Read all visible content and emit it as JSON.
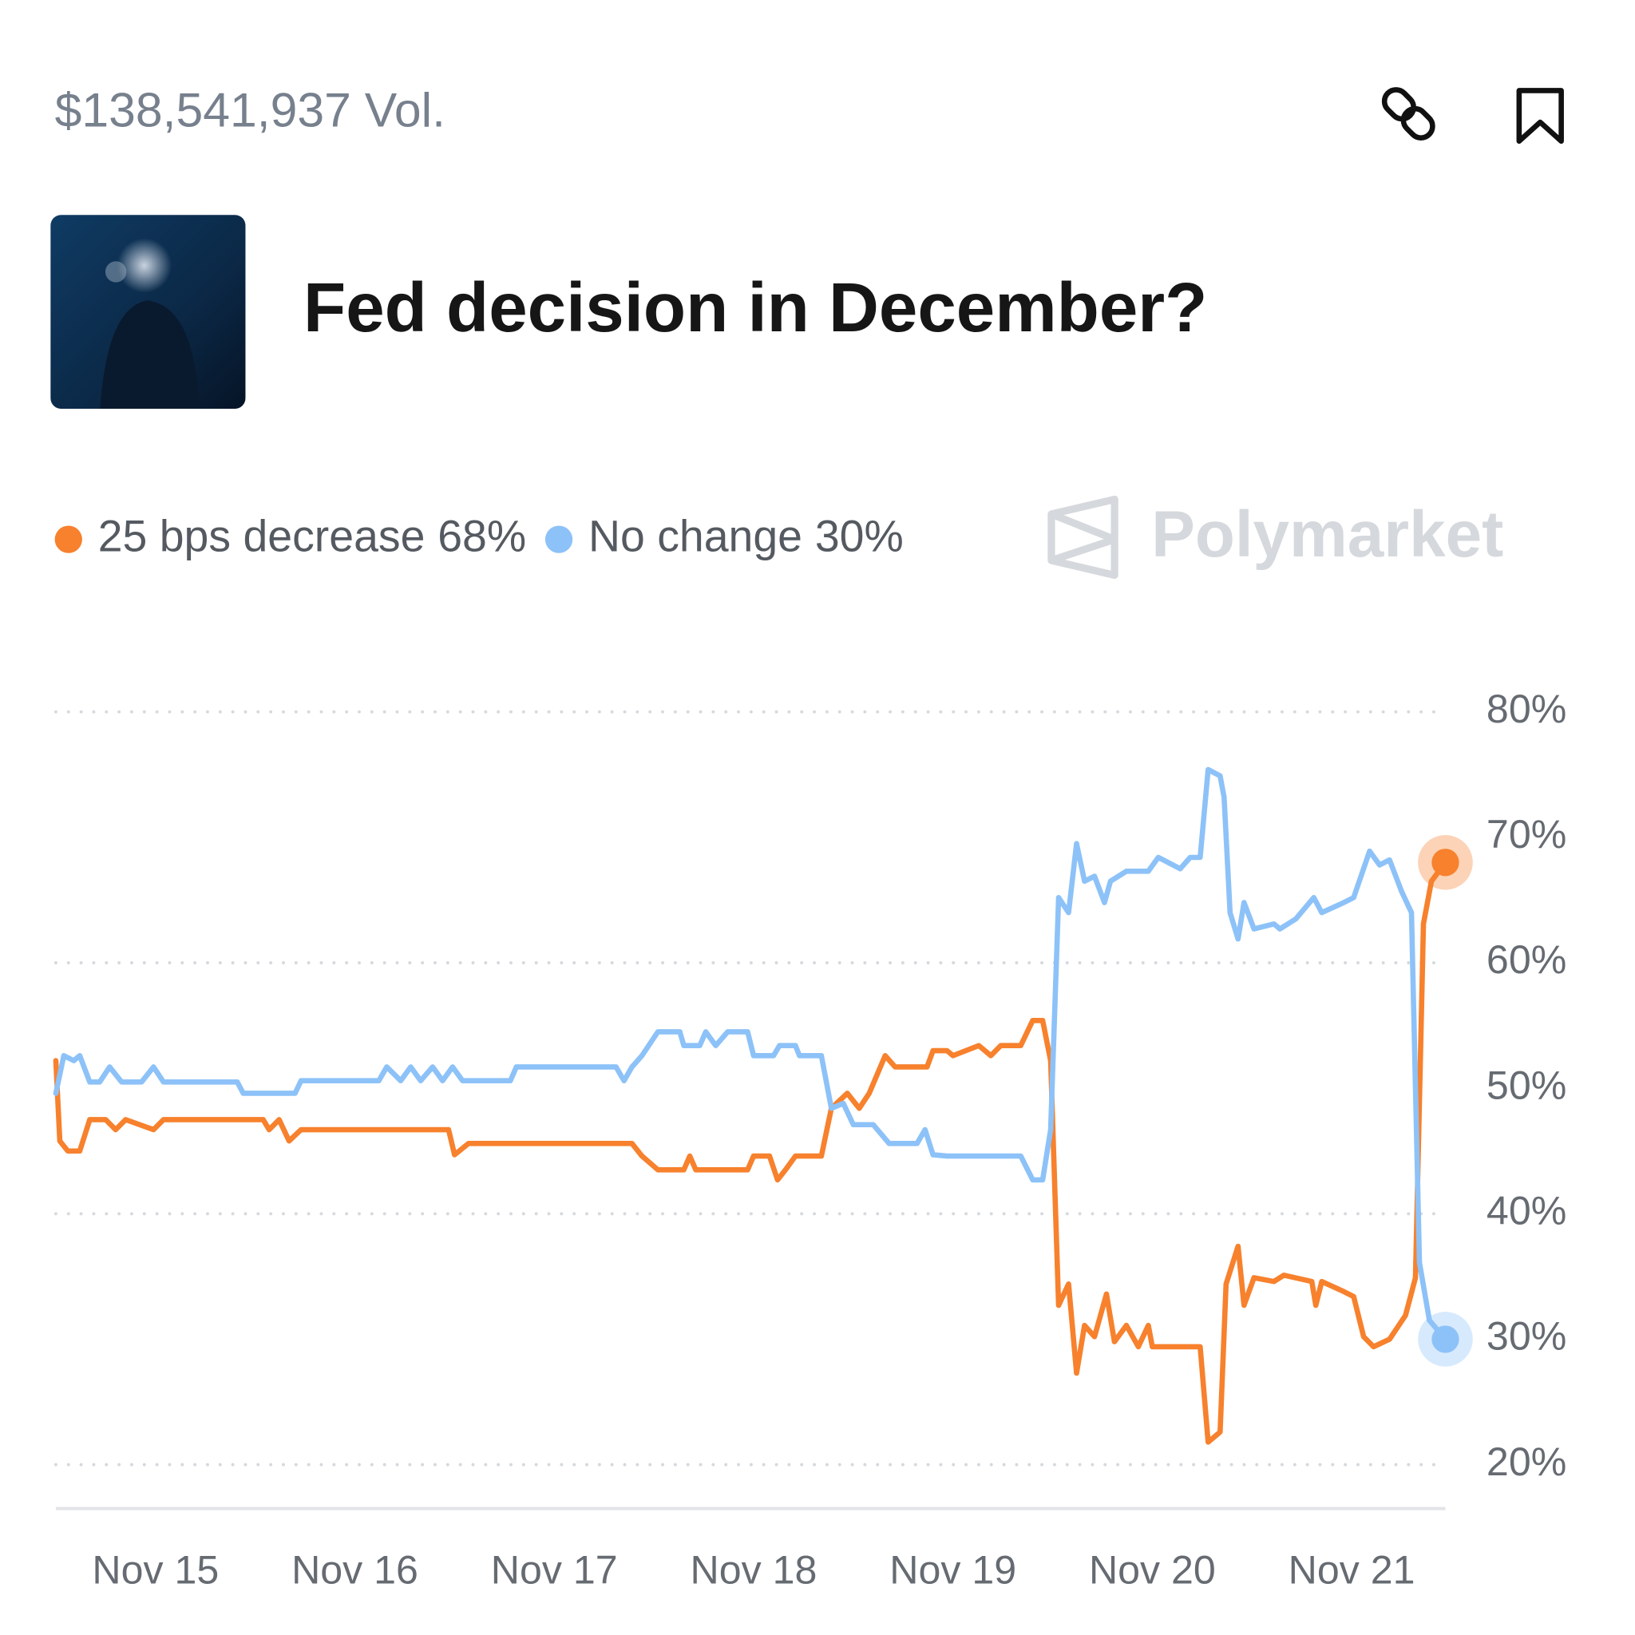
{
  "header": {
    "volume": "$138,541,937 Vol.",
    "title": "Fed decision in December?"
  },
  "chart_data": {
    "type": "line",
    "watermark": "Polymarket",
    "xlim": [
      14.5,
      21.47
    ],
    "xticks": [
      {
        "value": 15,
        "label": "Nov 15"
      },
      {
        "value": 16,
        "label": "Nov 16"
      },
      {
        "value": 17,
        "label": "Nov 17"
      },
      {
        "value": 18,
        "label": "Nov 18"
      },
      {
        "value": 19,
        "label": "Nov 19"
      },
      {
        "value": 20,
        "label": "Nov 20"
      },
      {
        "value": 21,
        "label": "Nov 21"
      }
    ],
    "ylim": [
      16.5,
      83
    ],
    "yticks": [
      {
        "value": 80,
        "label": "80%"
      },
      {
        "value": 70,
        "label": "70%"
      },
      {
        "value": 60,
        "label": "60%"
      },
      {
        "value": 50,
        "label": "50%"
      },
      {
        "value": 40,
        "label": "40%"
      },
      {
        "value": 30,
        "label": "30%"
      },
      {
        "value": 20,
        "label": "20%"
      }
    ],
    "ygrid": [
      80,
      60,
      40,
      20
    ],
    "series": [
      {
        "name": "25 bps decrease",
        "color": "#f7812d",
        "legend_value": 68,
        "legend_label": "68%",
        "x": [
          14.5,
          14.52,
          14.56,
          14.62,
          14.67,
          14.75,
          14.8,
          14.85,
          14.99,
          15.04,
          15.54,
          15.57,
          15.62,
          15.67,
          15.73,
          16.47,
          16.5,
          16.57,
          17.39,
          17.44,
          17.52,
          17.65,
          17.68,
          17.71,
          17.97,
          18.0,
          18.08,
          18.12,
          18.16,
          18.21,
          18.34,
          18.39,
          18.47,
          18.53,
          18.58,
          18.66,
          18.71,
          18.87,
          18.9,
          18.97,
          19.0,
          19.13,
          19.19,
          19.24,
          19.34,
          19.4,
          19.45,
          19.49,
          19.53,
          19.58,
          19.62,
          19.66,
          19.71,
          19.77,
          19.81,
          19.87,
          19.93,
          19.98,
          20.0,
          20.24,
          20.28,
          20.34,
          20.37,
          20.43,
          20.46,
          20.51,
          20.61,
          20.66,
          20.8,
          20.82,
          20.85,
          20.96,
          21.01,
          21.06,
          21.11,
          21.19,
          21.27,
          21.32,
          21.36,
          21.4,
          21.47
        ],
        "values": [
          52.2,
          45.8,
          45.0,
          45.0,
          47.5,
          47.5,
          46.7,
          47.5,
          46.7,
          47.5,
          47.5,
          46.7,
          47.5,
          45.8,
          46.7,
          46.7,
          44.7,
          45.6,
          45.6,
          44.6,
          43.5,
          43.5,
          44.6,
          43.5,
          43.5,
          44.6,
          44.6,
          42.7,
          43.5,
          44.6,
          44.6,
          48.4,
          49.6,
          48.4,
          49.6,
          52.6,
          51.7,
          51.7,
          53.0,
          53.0,
          52.6,
          53.4,
          52.6,
          53.4,
          53.4,
          55.4,
          55.4,
          52.2,
          32.7,
          34.4,
          27.3,
          31.1,
          30.2,
          33.6,
          29.8,
          31.1,
          29.4,
          31.1,
          29.4,
          29.4,
          21.8,
          22.6,
          34.4,
          37.4,
          32.7,
          34.9,
          34.6,
          35.1,
          34.6,
          32.7,
          34.6,
          33.8,
          33.4,
          30.2,
          29.4,
          30.0,
          31.9,
          34.9,
          63.1,
          66.5,
          68
        ]
      },
      {
        "name": "No change",
        "color": "#8dc2f8",
        "legend_value": 30,
        "legend_label": "30%",
        "x": [
          14.5,
          14.54,
          14.59,
          14.62,
          14.67,
          14.72,
          14.77,
          14.83,
          14.93,
          14.99,
          15.04,
          15.41,
          15.44,
          15.7,
          15.73,
          16.12,
          16.16,
          16.23,
          16.28,
          16.33,
          16.39,
          16.44,
          16.49,
          16.54,
          16.78,
          16.81,
          17.31,
          17.35,
          17.39,
          17.44,
          17.52,
          17.63,
          17.65,
          17.73,
          17.76,
          17.81,
          17.87,
          17.97,
          18.0,
          18.1,
          18.13,
          18.21,
          18.23,
          18.34,
          18.39,
          18.45,
          18.5,
          18.6,
          18.68,
          18.82,
          18.86,
          18.9,
          18.97,
          19.08,
          19.13,
          19.34,
          19.4,
          19.45,
          19.49,
          19.53,
          19.58,
          19.62,
          19.66,
          19.71,
          19.76,
          19.79,
          19.87,
          19.98,
          20.03,
          20.14,
          20.19,
          20.24,
          20.28,
          20.34,
          20.36,
          20.39,
          20.43,
          20.46,
          20.51,
          20.61,
          20.64,
          20.72,
          20.81,
          20.85,
          20.96,
          21.01,
          21.09,
          21.14,
          21.19,
          21.25,
          21.3,
          21.34,
          21.39,
          21.47
        ],
        "values": [
          49.6,
          52.6,
          52.2,
          52.6,
          50.5,
          50.5,
          51.7,
          50.5,
          50.5,
          51.7,
          50.5,
          50.5,
          49.6,
          49.6,
          50.6,
          50.6,
          51.7,
          50.6,
          51.7,
          50.6,
          51.7,
          50.6,
          51.7,
          50.6,
          50.6,
          51.7,
          51.7,
          50.6,
          51.7,
          52.6,
          54.5,
          54.5,
          53.4,
          53.4,
          54.5,
          53.4,
          54.5,
          54.5,
          52.6,
          52.6,
          53.4,
          53.4,
          52.6,
          52.6,
          48.4,
          48.8,
          47.1,
          47.1,
          45.6,
          45.6,
          46.7,
          44.7,
          44.6,
          44.6,
          44.6,
          44.6,
          42.7,
          42.7,
          46.7,
          65.2,
          64.0,
          69.5,
          66.5,
          66.9,
          64.8,
          66.5,
          67.3,
          67.3,
          68.4,
          67.5,
          68.4,
          68.4,
          75.4,
          74.9,
          73.2,
          64.0,
          61.9,
          64.8,
          62.7,
          63.1,
          62.7,
          63.5,
          65.2,
          64.0,
          64.8,
          65.2,
          68.9,
          67.8,
          68.2,
          65.7,
          64.0,
          36.1,
          31.5,
          30
        ]
      }
    ]
  }
}
